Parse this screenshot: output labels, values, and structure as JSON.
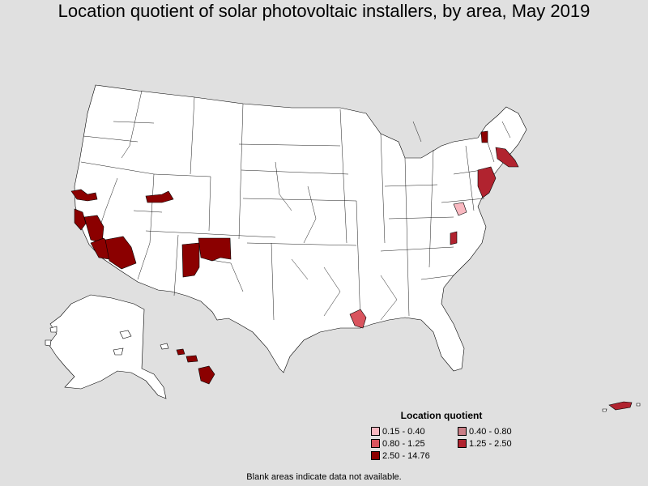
{
  "title": "Location quotient of solar photovoltaic installers, by area, May 2019",
  "legend": {
    "title": "Location quotient",
    "items": [
      {
        "label": "0.15 - 0.40",
        "color": "#f9b8c0"
      },
      {
        "label": "0.40 - 0.80",
        "color": "#c97e86"
      },
      {
        "label": "0.80 - 1.25",
        "color": "#d9545e"
      },
      {
        "label": "1.25 - 2.50",
        "color": "#b1232f"
      },
      {
        "label": "2.50 - 14.76",
        "color": "#8b0000"
      }
    ]
  },
  "note": "Blank areas indicate data not available.",
  "areas": [
    {
      "name": "Sacramento area",
      "class": "2.50 - 14.76"
    },
    {
      "name": "San Francisco Bay area",
      "class": "2.50 - 14.76"
    },
    {
      "name": "Central California",
      "class": "2.50 - 14.76"
    },
    {
      "name": "Southern California",
      "class": "2.50 - 14.76"
    },
    {
      "name": "Inland Empire",
      "class": "2.50 - 14.76"
    },
    {
      "name": "Northern Utah",
      "class": "2.50 - 14.76"
    },
    {
      "name": "Northern New Mexico",
      "class": "2.50 - 14.76"
    },
    {
      "name": "Central New Mexico",
      "class": "2.50 - 14.76"
    },
    {
      "name": "Hawaii",
      "class": "2.50 - 14.76"
    },
    {
      "name": "Northern Vermont",
      "class": "2.50 - 14.76"
    },
    {
      "name": "Massachusetts",
      "class": "1.25 - 2.50"
    },
    {
      "name": "New York - New Jersey",
      "class": "1.25 - 2.50"
    },
    {
      "name": "Puerto Rico",
      "class": "1.25 - 2.50"
    },
    {
      "name": "North Carolina area",
      "class": "1.25 - 2.50"
    },
    {
      "name": "Louisiana area",
      "class": "0.80 - 1.25"
    },
    {
      "name": "Virginia area",
      "class": "0.15 - 0.40"
    }
  ]
}
